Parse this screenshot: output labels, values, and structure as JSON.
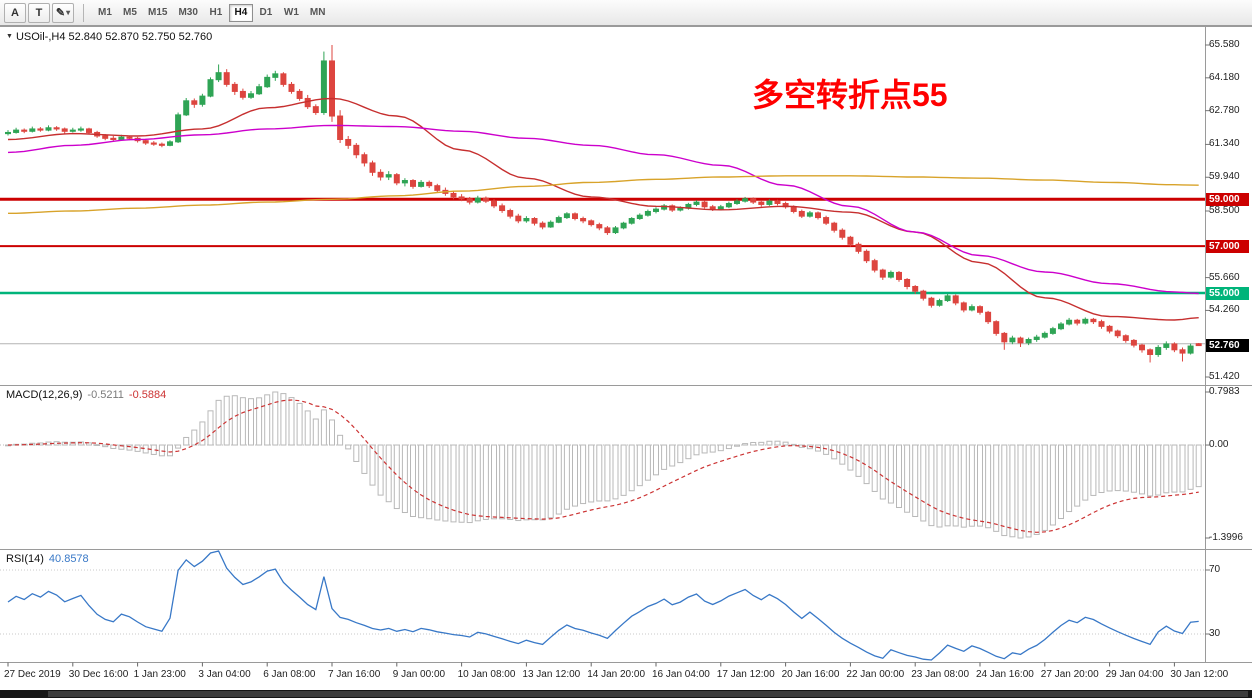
{
  "toolbar": {
    "tools": [
      {
        "label": "A",
        "name": "font-tool"
      },
      {
        "label": "T",
        "name": "text-tool"
      },
      {
        "label": "✎",
        "name": "color-tool"
      }
    ],
    "timeframes": [
      {
        "label": "M1",
        "active": false
      },
      {
        "label": "M5",
        "active": false
      },
      {
        "label": "M15",
        "active": false
      },
      {
        "label": "M30",
        "active": false
      },
      {
        "label": "H1",
        "active": false
      },
      {
        "label": "H4",
        "active": true
      },
      {
        "label": "D1",
        "active": false
      },
      {
        "label": "W1",
        "active": false
      },
      {
        "label": "MN",
        "active": false
      }
    ]
  },
  "chart": {
    "header_text": "USOil-,H4 52.840 52.870 52.750 52.760",
    "annotation": {
      "text": "多空转折点55",
      "color": "#ff0000"
    }
  },
  "chart_data": {
    "type": "candlestick",
    "symbol": "USOil-",
    "timeframe": "H4",
    "current_ohlc": {
      "open": 52.84,
      "high": 52.87,
      "low": 52.75,
      "close": 52.76
    },
    "y_axis": {
      "min": 51.42,
      "max": 65.58,
      "ticks": [
        "65.580",
        "64.180",
        "62.780",
        "61.340",
        "59.940",
        "58.500",
        "55.660",
        "54.260",
        "51.420"
      ]
    },
    "x_axis": {
      "labels": [
        "27 Dec 2019",
        "30 Dec 16:00",
        "1 Jan 23:00",
        "3 Jan 04:00",
        "6 Jan 08:00",
        "7 Jan 16:00",
        "9 Jan 00:00",
        "10 Jan 08:00",
        "13 Jan 12:00",
        "14 Jan 20:00",
        "16 Jan 04:00",
        "17 Jan 12:00",
        "20 Jan 16:00",
        "22 Jan 00:00",
        "23 Jan 08:00",
        "24 Jan 16:00",
        "27 Jan 20:00",
        "29 Jan 04:00",
        "30 Jan 12:00"
      ],
      "indices": [
        0,
        8,
        16,
        24,
        32,
        40,
        48,
        56,
        64,
        72,
        80,
        88,
        96,
        104,
        112,
        120,
        128,
        136,
        144
      ]
    },
    "candle_colors": {
      "bull": "#2fa455",
      "bear": "#dd453f"
    },
    "levels": [
      {
        "price": 59.0,
        "label": "59.000",
        "color": "#cc0000",
        "width": 3
      },
      {
        "price": 57.0,
        "label": "57.000",
        "color": "#cc0000",
        "width": 2
      },
      {
        "price": 55.0,
        "label": "55.000",
        "color": "#00b47a",
        "width": 2.5
      }
    ],
    "current_price_marker": {
      "price": 52.76,
      "label": "52.760",
      "color": "#000000"
    },
    "open_line": {
      "price": 52.84,
      "color": "#b4b4b4"
    },
    "moving_averages": {
      "sample_indices": [
        0,
        8,
        16,
        24,
        32,
        40,
        48,
        56,
        64,
        72,
        80,
        88,
        96,
        104,
        112,
        120,
        128,
        136,
        144,
        147
      ],
      "series": [
        {
          "name": "ma-fast-red",
          "color": "#c62f2f",
          "values": [
            61.55,
            61.8,
            61.7,
            62.0,
            62.9,
            63.3,
            62.55,
            61.1,
            59.9,
            59.1,
            58.7,
            58.55,
            58.7,
            58.45,
            57.6,
            56.3,
            54.8,
            54.0,
            53.85,
            53.95
          ]
        },
        {
          "name": "ma-mid-magenta",
          "color": "#cc00cc",
          "values": [
            61.0,
            61.3,
            61.55,
            61.75,
            62.0,
            62.15,
            62.1,
            61.9,
            61.6,
            61.3,
            60.9,
            60.45,
            59.6,
            58.7,
            57.6,
            56.6,
            55.9,
            55.4,
            55.05,
            54.98
          ]
        },
        {
          "name": "ma-slow-orange",
          "color": "#d8a32a",
          "values": [
            58.4,
            58.5,
            58.62,
            58.75,
            58.88,
            59.0,
            59.15,
            59.35,
            59.55,
            59.72,
            59.85,
            59.95,
            60.0,
            60.0,
            59.95,
            59.9,
            59.82,
            59.72,
            59.62,
            59.6
          ]
        }
      ]
    },
    "candles": [
      [
        61.8,
        61.95,
        61.72,
        61.85
      ],
      [
        61.85,
        62.05,
        61.8,
        61.95
      ],
      [
        61.95,
        62.02,
        61.82,
        61.9
      ],
      [
        61.9,
        62.1,
        61.85,
        62.0
      ],
      [
        62.0,
        62.08,
        61.88,
        61.95
      ],
      [
        61.95,
        62.15,
        61.9,
        62.05
      ],
      [
        62.05,
        62.12,
        61.92,
        62.0
      ],
      [
        62.0,
        62.06,
        61.8,
        61.9
      ],
      [
        61.9,
        62.05,
        61.85,
        61.95
      ],
      [
        61.95,
        62.1,
        61.88,
        62.0
      ],
      [
        62.0,
        62.05,
        61.78,
        61.85
      ],
      [
        61.85,
        61.92,
        61.62,
        61.7
      ],
      [
        61.7,
        61.78,
        61.52,
        61.6
      ],
      [
        61.6,
        61.7,
        61.46,
        61.55
      ],
      [
        61.55,
        61.75,
        61.5,
        61.65
      ],
      [
        61.65,
        61.72,
        61.52,
        61.6
      ],
      [
        61.6,
        61.66,
        61.42,
        61.5
      ],
      [
        61.5,
        61.58,
        61.32,
        61.4
      ],
      [
        61.4,
        61.48,
        61.28,
        61.35
      ],
      [
        61.35,
        61.42,
        61.22,
        61.3
      ],
      [
        61.3,
        61.52,
        61.26,
        61.45
      ],
      [
        61.45,
        62.7,
        61.4,
        62.6
      ],
      [
        62.6,
        63.32,
        62.55,
        63.2
      ],
      [
        63.2,
        63.3,
        62.9,
        63.05
      ],
      [
        63.05,
        63.5,
        62.95,
        63.4
      ],
      [
        63.4,
        64.2,
        63.35,
        64.1
      ],
      [
        64.1,
        64.75,
        64.0,
        64.4
      ],
      [
        64.4,
        64.55,
        63.8,
        63.9
      ],
      [
        63.9,
        64.0,
        63.45,
        63.6
      ],
      [
        63.6,
        63.72,
        63.25,
        63.35
      ],
      [
        63.35,
        63.62,
        63.28,
        63.5
      ],
      [
        63.5,
        63.92,
        63.45,
        63.8
      ],
      [
        63.8,
        64.32,
        63.75,
        64.2
      ],
      [
        64.2,
        64.48,
        64.05,
        64.35
      ],
      [
        64.35,
        64.42,
        63.8,
        63.9
      ],
      [
        63.9,
        64.0,
        63.5,
        63.6
      ],
      [
        63.6,
        63.7,
        63.2,
        63.3
      ],
      [
        63.3,
        63.45,
        62.85,
        62.95
      ],
      [
        62.95,
        63.05,
        62.6,
        62.7
      ],
      [
        62.7,
        65.3,
        62.6,
        64.9
      ],
      [
        64.9,
        65.58,
        62.3,
        62.55
      ],
      [
        62.55,
        62.8,
        61.4,
        61.55
      ],
      [
        61.55,
        61.7,
        61.15,
        61.3
      ],
      [
        61.3,
        61.4,
        60.75,
        60.9
      ],
      [
        60.9,
        61.0,
        60.4,
        60.55
      ],
      [
        60.55,
        60.65,
        60.0,
        60.15
      ],
      [
        60.15,
        60.28,
        59.8,
        59.95
      ],
      [
        59.95,
        60.2,
        59.82,
        60.05
      ],
      [
        60.05,
        60.12,
        59.6,
        59.7
      ],
      [
        59.7,
        59.9,
        59.55,
        59.8
      ],
      [
        59.8,
        59.86,
        59.45,
        59.55
      ],
      [
        59.55,
        59.82,
        59.5,
        59.72
      ],
      [
        59.72,
        59.8,
        59.48,
        59.58
      ],
      [
        59.58,
        59.66,
        59.28,
        59.38
      ],
      [
        59.38,
        59.5,
        59.15,
        59.25
      ],
      [
        59.25,
        59.35,
        59.0,
        59.1
      ],
      [
        59.1,
        59.22,
        58.92,
        59.02
      ],
      [
        59.02,
        59.1,
        58.78,
        58.88
      ],
      [
        58.88,
        59.15,
        58.82,
        59.05
      ],
      [
        59.05,
        59.12,
        58.84,
        58.92
      ],
      [
        58.92,
        59.0,
        58.62,
        58.72
      ],
      [
        58.72,
        58.82,
        58.42,
        58.52
      ],
      [
        58.52,
        58.6,
        58.18,
        58.28
      ],
      [
        58.28,
        58.38,
        57.98,
        58.08
      ],
      [
        58.08,
        58.28,
        58.0,
        58.18
      ],
      [
        58.18,
        58.24,
        57.88,
        57.98
      ],
      [
        57.98,
        58.06,
        57.72,
        57.82
      ],
      [
        57.82,
        58.1,
        57.78,
        58.02
      ],
      [
        58.02,
        58.3,
        57.98,
        58.22
      ],
      [
        58.22,
        58.45,
        58.16,
        58.38
      ],
      [
        58.38,
        58.44,
        58.1,
        58.18
      ],
      [
        58.18,
        58.26,
        57.98,
        58.08
      ],
      [
        58.08,
        58.14,
        57.84,
        57.92
      ],
      [
        57.92,
        58.0,
        57.68,
        57.78
      ],
      [
        57.78,
        57.86,
        57.48,
        57.58
      ],
      [
        57.58,
        57.86,
        57.52,
        57.78
      ],
      [
        57.78,
        58.04,
        57.72,
        57.98
      ],
      [
        57.98,
        58.24,
        57.92,
        58.18
      ],
      [
        58.18,
        58.4,
        58.12,
        58.32
      ],
      [
        58.32,
        58.56,
        58.26,
        58.48
      ],
      [
        58.48,
        58.66,
        58.4,
        58.58
      ],
      [
        58.58,
        58.8,
        58.52,
        58.72
      ],
      [
        58.72,
        58.78,
        58.46,
        58.54
      ],
      [
        58.54,
        58.7,
        58.48,
        58.62
      ],
      [
        58.62,
        58.85,
        58.56,
        58.78
      ],
      [
        58.78,
        58.96,
        58.7,
        58.88
      ],
      [
        58.88,
        58.94,
        58.6,
        58.68
      ],
      [
        58.68,
        58.76,
        58.5,
        58.58
      ],
      [
        58.58,
        58.76,
        58.52,
        58.68
      ],
      [
        58.68,
        58.9,
        58.62,
        58.82
      ],
      [
        58.82,
        59.0,
        58.76,
        58.92
      ],
      [
        58.92,
        59.1,
        58.86,
        59.02
      ],
      [
        59.02,
        59.08,
        58.8,
        58.88
      ],
      [
        58.88,
        58.96,
        58.68,
        58.78
      ],
      [
        58.78,
        59.0,
        58.72,
        58.92
      ],
      [
        58.92,
        58.98,
        58.74,
        58.82
      ],
      [
        58.82,
        58.9,
        58.6,
        58.68
      ],
      [
        58.68,
        58.74,
        58.4,
        58.48
      ],
      [
        58.48,
        58.56,
        58.2,
        58.28
      ],
      [
        58.28,
        58.5,
        58.22,
        58.42
      ],
      [
        58.42,
        58.48,
        58.14,
        58.22
      ],
      [
        58.22,
        58.3,
        57.9,
        57.98
      ],
      [
        57.98,
        58.04,
        57.58,
        57.68
      ],
      [
        57.68,
        57.76,
        57.28,
        57.38
      ],
      [
        57.38,
        57.44,
        56.98,
        57.08
      ],
      [
        57.08,
        57.16,
        56.68,
        56.78
      ],
      [
        56.78,
        56.86,
        56.28,
        56.38
      ],
      [
        56.38,
        56.46,
        55.88,
        55.98
      ],
      [
        55.98,
        56.04,
        55.56,
        55.68
      ],
      [
        55.68,
        55.96,
        55.62,
        55.88
      ],
      [
        55.88,
        55.94,
        55.48,
        55.58
      ],
      [
        55.58,
        55.64,
        55.16,
        55.28
      ],
      [
        55.28,
        55.34,
        54.96,
        55.08
      ],
      [
        55.08,
        55.14,
        54.68,
        54.78
      ],
      [
        54.78,
        54.84,
        54.38,
        54.48
      ],
      [
        54.48,
        54.76,
        54.42,
        54.68
      ],
      [
        54.68,
        54.96,
        54.62,
        54.88
      ],
      [
        54.88,
        54.94,
        54.48,
        54.58
      ],
      [
        54.58,
        54.64,
        54.18,
        54.28
      ],
      [
        54.28,
        54.52,
        54.22,
        54.42
      ],
      [
        54.42,
        54.48,
        54.08,
        54.18
      ],
      [
        54.18,
        54.24,
        53.68,
        53.78
      ],
      [
        53.78,
        53.84,
        53.18,
        53.28
      ],
      [
        53.28,
        53.34,
        52.58,
        52.92
      ],
      [
        52.92,
        53.18,
        52.82,
        53.08
      ],
      [
        53.08,
        53.14,
        52.7,
        52.88
      ],
      [
        52.88,
        53.1,
        52.78,
        53.02
      ],
      [
        53.02,
        53.22,
        52.92,
        53.12
      ],
      [
        53.12,
        53.36,
        53.06,
        53.28
      ],
      [
        53.28,
        53.56,
        53.22,
        53.48
      ],
      [
        53.48,
        53.76,
        53.42,
        53.68
      ],
      [
        53.68,
        53.94,
        53.62,
        53.84
      ],
      [
        53.84,
        53.9,
        53.62,
        53.72
      ],
      [
        53.72,
        53.96,
        53.66,
        53.88
      ],
      [
        53.88,
        53.94,
        53.68,
        53.78
      ],
      [
        53.78,
        53.86,
        53.48,
        53.58
      ],
      [
        53.58,
        53.64,
        53.28,
        53.38
      ],
      [
        53.38,
        53.44,
        53.08,
        53.18
      ],
      [
        53.18,
        53.24,
        52.88,
        52.98
      ],
      [
        52.98,
        53.04,
        52.68,
        52.78
      ],
      [
        52.78,
        52.84,
        52.46,
        52.58
      ],
      [
        52.58,
        52.64,
        52.04,
        52.38
      ],
      [
        52.38,
        52.78,
        52.28,
        52.68
      ],
      [
        52.68,
        52.94,
        52.58,
        52.83
      ],
      [
        52.83,
        52.9,
        52.48,
        52.58
      ],
      [
        52.58,
        52.68,
        52.08,
        52.44
      ],
      [
        52.44,
        52.84,
        52.38,
        52.74
      ],
      [
        52.84,
        52.87,
        52.75,
        52.76
      ]
    ],
    "macd": {
      "label": "MACD(12,26,9)",
      "main_value": "-0.5211",
      "signal_value": "-0.5884",
      "params": [
        12,
        26,
        9
      ],
      "scale_max": 0.7983,
      "scale_min": -1.3996,
      "ticks": [
        "0.7983",
        "0.00",
        "-1.3996"
      ],
      "histogram_color": "#b8b8b8",
      "signal_color": "#cc3333"
    },
    "rsi": {
      "label": "RSI(14)",
      "value": "40.8578",
      "period": 14,
      "levels": [
        "70",
        "30"
      ],
      "color": "#3878c7"
    }
  }
}
